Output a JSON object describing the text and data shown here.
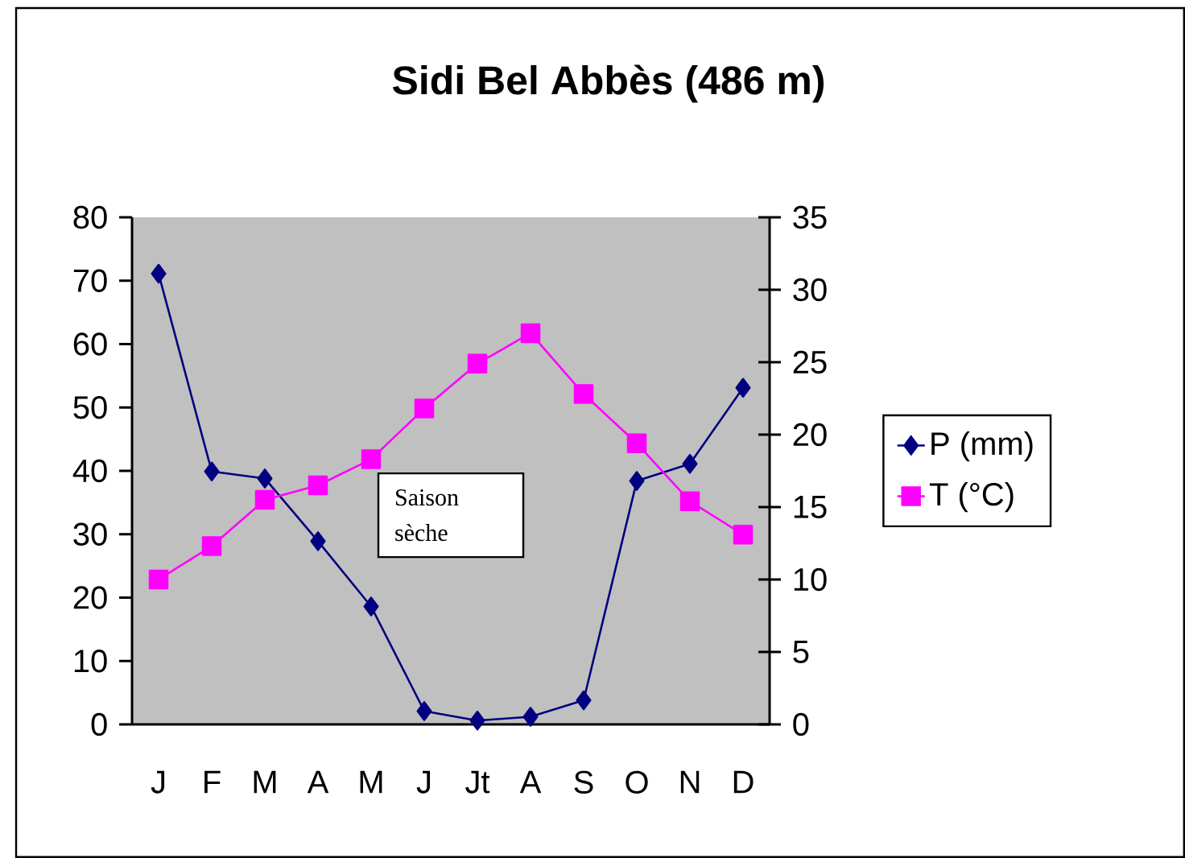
{
  "chart_data": {
    "type": "line",
    "title": "Sidi Bel Abbès (486 m)",
    "categories": [
      "J",
      "F",
      "M",
      "A",
      "M",
      "J",
      "Jt",
      "A",
      "S",
      "O",
      "N",
      "D"
    ],
    "series": [
      {
        "name": "P (mm)",
        "color": "#000080",
        "marker": "diamond",
        "values": [
          71.1,
          39.9,
          38.8,
          28.9,
          18.6,
          2.1,
          0.6,
          1.2,
          3.8,
          38.4,
          41.1,
          53.1
        ]
      },
      {
        "name": "T (°C)",
        "color": "#ff00ff",
        "marker": "square",
        "axis": "y2",
        "values": [
          10.0,
          12.3,
          15.5,
          16.5,
          18.3,
          21.8,
          24.9,
          27.0,
          22.8,
          19.4,
          15.4,
          13.1
        ]
      }
    ],
    "ylim": [
      0,
      80
    ],
    "yticks": [
      0,
      10,
      20,
      30,
      40,
      50,
      60,
      70,
      80
    ],
    "y2lim": [
      0,
      35
    ],
    "y2ticks": [
      0,
      5,
      10,
      15,
      20,
      25,
      30,
      35
    ],
    "annotations": [
      "Saison sèche"
    ],
    "grid": false,
    "legend": "right"
  }
}
